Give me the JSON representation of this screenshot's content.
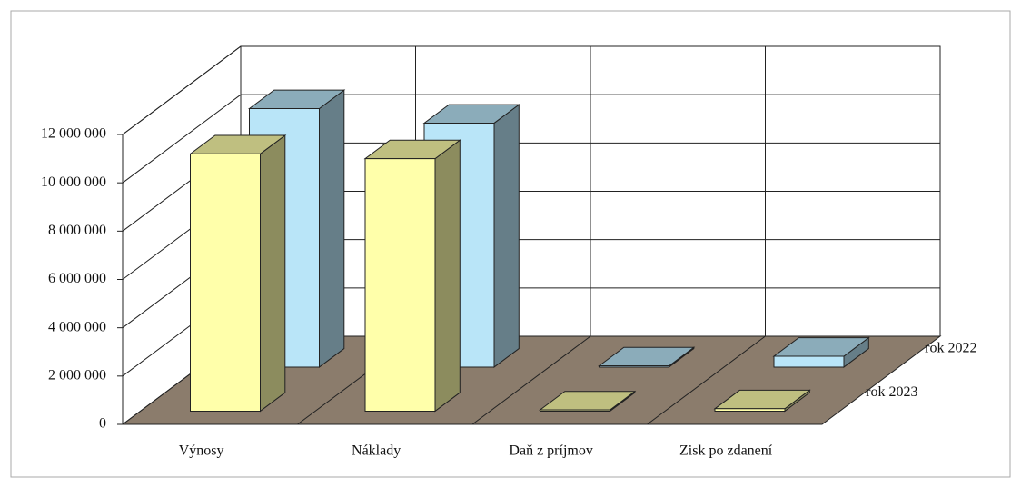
{
  "chart_data": {
    "type": "bar",
    "categories": [
      "Výnosy",
      "Náklady",
      "Daň z príjmov",
      "Zisk po zdanení"
    ],
    "series": [
      {
        "name": "rok 2022",
        "color": "#b9e5f8",
        "values": [
          10700000,
          10100000,
          50000,
          450000
        ]
      },
      {
        "name": "rok 2023",
        "color": "#ffffaa",
        "values": [
          10650000,
          10450000,
          50000,
          100000
        ]
      }
    ],
    "ylim": [
      0,
      12000000
    ],
    "yticks": [
      0,
      {
        "value": 2000000,
        "label": "2 000 000"
      },
      {
        "value": 4000000,
        "label": "4 000 000"
      },
      {
        "value": 6000000,
        "label": "6 000 000"
      },
      {
        "value": 8000000,
        "label": "8 000 000"
      },
      {
        "value": 10000000,
        "label": "10 000 000"
      },
      {
        "value": 12000000,
        "label": "12 000 000"
      }
    ],
    "grid": true
  }
}
